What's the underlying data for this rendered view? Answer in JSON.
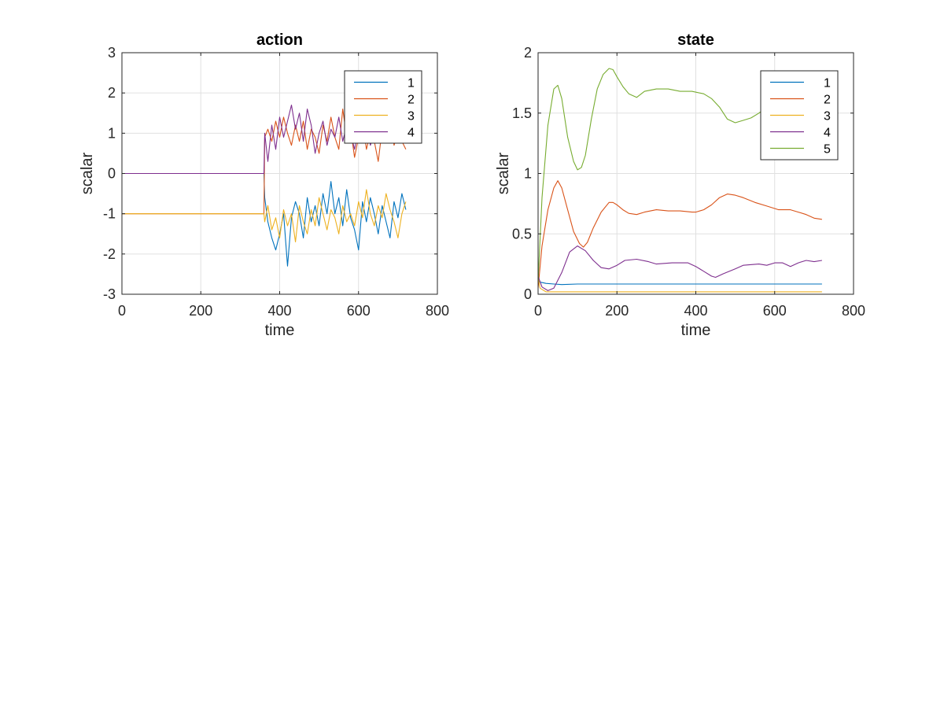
{
  "chart_data": [
    {
      "type": "line",
      "title": "action",
      "xlabel": "time",
      "ylabel": "scalar",
      "xlim": [
        0,
        800
      ],
      "ylim": [
        -3,
        3
      ],
      "xticks": [
        "0",
        "200",
        "400",
        "600",
        "800"
      ],
      "yticks": [
        "-3",
        "-2",
        "-1",
        "0",
        "1",
        "2",
        "3"
      ],
      "grid": true,
      "legend": "top-right",
      "series": [
        {
          "name": "1",
          "color": "#0072BD",
          "x": [
            0,
            360,
            362,
            370,
            380,
            390,
            400,
            410,
            420,
            430,
            440,
            450,
            460,
            470,
            480,
            490,
            500,
            510,
            520,
            530,
            540,
            550,
            560,
            570,
            580,
            590,
            600,
            610,
            620,
            630,
            640,
            650,
            660,
            670,
            680,
            690,
            700,
            710,
            720
          ],
          "y": [
            0,
            0,
            -0.6,
            -1.2,
            -1.6,
            -1.9,
            -1.5,
            -1.0,
            -2.3,
            -1.1,
            -0.7,
            -1.0,
            -1.6,
            -0.6,
            -1.2,
            -0.8,
            -1.3,
            -0.5,
            -1.0,
            -0.2,
            -1.0,
            -0.6,
            -1.3,
            -0.4,
            -1.1,
            -1.4,
            -1.9,
            -0.7,
            -1.2,
            -0.6,
            -1.0,
            -1.5,
            -0.8,
            -1.2,
            -1.6,
            -0.7,
            -1.1,
            -0.5,
            -0.9
          ]
        },
        {
          "name": "2",
          "color": "#D95319",
          "x": [
            0,
            360,
            362,
            370,
            380,
            390,
            400,
            410,
            420,
            430,
            440,
            450,
            460,
            470,
            480,
            490,
            500,
            510,
            520,
            530,
            540,
            550,
            560,
            570,
            580,
            590,
            600,
            610,
            620,
            630,
            640,
            650,
            660,
            670,
            680,
            690,
            700,
            710,
            720
          ],
          "y": [
            -1,
            -1,
            0.9,
            1.1,
            0.8,
            1.3,
            0.9,
            1.4,
            1.0,
            0.7,
            1.2,
            0.8,
            1.3,
            0.6,
            1.1,
            0.9,
            0.5,
            1.2,
            0.8,
            1.4,
            0.9,
            0.6,
            1.6,
            0.9,
            1.1,
            0.4,
            0.9,
            1.3,
            0.6,
            1.0,
            0.8,
            0.3,
            1.1,
            0.9,
            1.4,
            0.7,
            1.0,
            0.8,
            0.6
          ]
        },
        {
          "name": "3",
          "color": "#EDB120",
          "x": [
            0,
            360,
            362,
            370,
            380,
            390,
            400,
            410,
            420,
            430,
            440,
            450,
            460,
            470,
            480,
            490,
            500,
            510,
            520,
            530,
            540,
            550,
            560,
            570,
            580,
            590,
            600,
            610,
            620,
            630,
            640,
            650,
            660,
            670,
            680,
            690,
            700,
            710,
            720
          ],
          "y": [
            -1,
            -1,
            -1.2,
            -0.8,
            -1.4,
            -1.1,
            -1.6,
            -0.9,
            -1.3,
            -1.0,
            -1.7,
            -0.8,
            -1.2,
            -1.5,
            -0.9,
            -1.3,
            -0.6,
            -1.0,
            -1.4,
            -0.9,
            -1.1,
            -1.5,
            -0.8,
            -1.2,
            -1.0,
            -1.3,
            -0.7,
            -1.1,
            -0.4,
            -1.0,
            -1.3,
            -0.8,
            -1.1,
            -0.5,
            -0.9,
            -1.2,
            -1.6,
            -1.0,
            -0.7
          ]
        },
        {
          "name": "4",
          "color": "#7E2F8E",
          "x": [
            0,
            360,
            362,
            370,
            380,
            390,
            400,
            410,
            420,
            430,
            440,
            450,
            460,
            470,
            480,
            490,
            500,
            510,
            520,
            530,
            540,
            550,
            560,
            570,
            580,
            590,
            600,
            610,
            620,
            630,
            640,
            650,
            660,
            670,
            680,
            690,
            700,
            710,
            720
          ],
          "y": [
            0,
            0,
            1.0,
            0.3,
            1.2,
            0.6,
            1.4,
            0.9,
            1.3,
            1.7,
            1.1,
            1.5,
            0.8,
            1.6,
            1.2,
            0.5,
            1.0,
            1.3,
            0.7,
            1.1,
            0.9,
            1.4,
            0.8,
            1.2,
            1.0,
            0.6,
            1.1,
            0.9,
            1.3,
            0.7,
            1.0,
            1.2,
            0.8,
            1.1,
            0.9,
            1.0,
            0.8,
            1.2,
            0.9
          ]
        }
      ]
    },
    {
      "type": "line",
      "title": "state",
      "xlabel": "time",
      "ylabel": "scalar",
      "xlim": [
        0,
        800
      ],
      "ylim": [
        0,
        2
      ],
      "xticks": [
        "0",
        "200",
        "400",
        "600",
        "800"
      ],
      "yticks": [
        "0",
        "0.5",
        "1",
        "1.5",
        "2"
      ],
      "grid": true,
      "legend": "top-right",
      "series": [
        {
          "name": "1",
          "color": "#0072BD",
          "x": [
            0,
            5,
            20,
            40,
            60,
            100,
            150,
            200,
            300,
            400,
            500,
            600,
            720
          ],
          "y": [
            0.12,
            0.1,
            0.09,
            0.085,
            0.08,
            0.085,
            0.085,
            0.085,
            0.085,
            0.085,
            0.085,
            0.085,
            0.085
          ]
        },
        {
          "name": "2",
          "color": "#D95319",
          "x": [
            0,
            10,
            25,
            40,
            50,
            60,
            75,
            90,
            105,
            115,
            125,
            140,
            160,
            180,
            190,
            200,
            215,
            230,
            250,
            270,
            300,
            330,
            360,
            390,
            400,
            420,
            440,
            460,
            480,
            500,
            520,
            550,
            580,
            610,
            640,
            660,
            680,
            700,
            720
          ],
          "y": [
            0.05,
            0.4,
            0.7,
            0.88,
            0.94,
            0.88,
            0.7,
            0.52,
            0.42,
            0.39,
            0.43,
            0.55,
            0.68,
            0.76,
            0.76,
            0.74,
            0.7,
            0.67,
            0.66,
            0.68,
            0.7,
            0.69,
            0.69,
            0.68,
            0.68,
            0.7,
            0.74,
            0.8,
            0.83,
            0.82,
            0.8,
            0.76,
            0.73,
            0.7,
            0.7,
            0.68,
            0.66,
            0.63,
            0.62
          ]
        },
        {
          "name": "3",
          "color": "#EDB120",
          "x": [
            0,
            5,
            20,
            720
          ],
          "y": [
            0.15,
            0.05,
            0.02,
            0.02
          ]
        },
        {
          "name": "4",
          "color": "#7E2F8E",
          "x": [
            0,
            10,
            25,
            40,
            60,
            80,
            100,
            120,
            140,
            160,
            180,
            200,
            220,
            250,
            280,
            300,
            340,
            380,
            400,
            420,
            440,
            450,
            470,
            500,
            520,
            560,
            580,
            600,
            620,
            640,
            660,
            680,
            700,
            720
          ],
          "y": [
            0.15,
            0.06,
            0.03,
            0.05,
            0.18,
            0.35,
            0.4,
            0.36,
            0.28,
            0.22,
            0.21,
            0.24,
            0.28,
            0.29,
            0.27,
            0.25,
            0.26,
            0.26,
            0.23,
            0.19,
            0.15,
            0.14,
            0.17,
            0.21,
            0.24,
            0.25,
            0.24,
            0.26,
            0.26,
            0.23,
            0.26,
            0.28,
            0.27,
            0.28
          ]
        },
        {
          "name": "5",
          "color": "#77AC30",
          "x": [
            0,
            10,
            25,
            40,
            50,
            60,
            75,
            90,
            100,
            110,
            120,
            135,
            150,
            165,
            180,
            190,
            200,
            215,
            230,
            250,
            270,
            300,
            330,
            360,
            390,
            420,
            440,
            460,
            480,
            500,
            520,
            540,
            560,
            580
          ],
          "y": [
            0.1,
            0.8,
            1.4,
            1.7,
            1.73,
            1.62,
            1.3,
            1.1,
            1.03,
            1.05,
            1.15,
            1.45,
            1.7,
            1.82,
            1.87,
            1.86,
            1.8,
            1.72,
            1.66,
            1.63,
            1.68,
            1.7,
            1.7,
            1.68,
            1.68,
            1.66,
            1.62,
            1.55,
            1.45,
            1.42,
            1.44,
            1.46,
            1.5,
            1.55
          ]
        }
      ]
    }
  ]
}
